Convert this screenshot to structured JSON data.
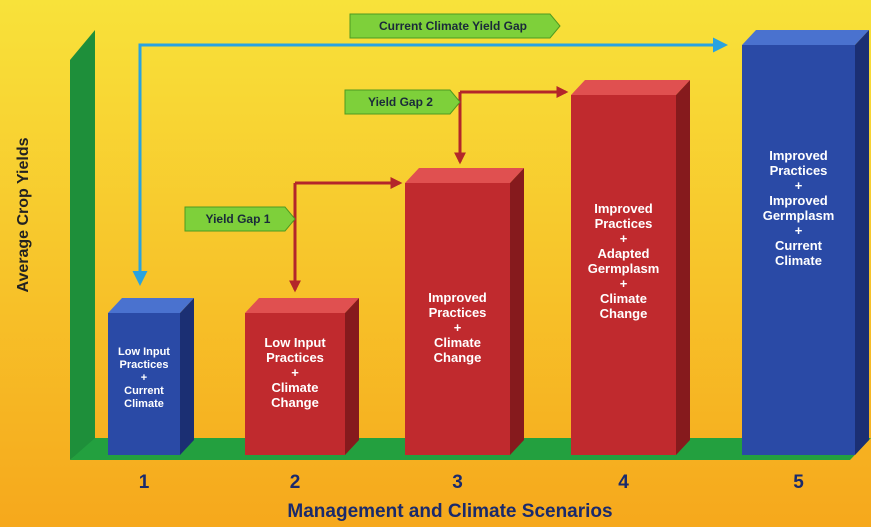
{
  "diagram": {
    "y_axis_title": "Average Crop Yields",
    "x_axis_title": "Management and Climate Scenarios",
    "bars": [
      {
        "number": "1",
        "label": [
          "Low Input",
          "Practices",
          "+",
          "Current",
          "Climate"
        ]
      },
      {
        "number": "2",
        "label": [
          "Low Input",
          "Practices",
          "+",
          "Climate",
          "Change"
        ]
      },
      {
        "number": "3",
        "label": [
          "Improved",
          "Practices",
          "+",
          "Climate",
          "Change"
        ]
      },
      {
        "number": "4",
        "label": [
          "Improved",
          "Practices",
          "+",
          "Adapted",
          "Germplasm",
          "+",
          "Climate",
          "Change"
        ]
      },
      {
        "number": "5",
        "label": [
          "Improved",
          "Practices",
          "+",
          "Improved",
          "Germplasm",
          "+",
          "Current",
          "Climate"
        ]
      }
    ],
    "gaps": [
      "Current Climate Yield Gap",
      "Yield Gap 2",
      "Yield Gap 1"
    ]
  }
}
